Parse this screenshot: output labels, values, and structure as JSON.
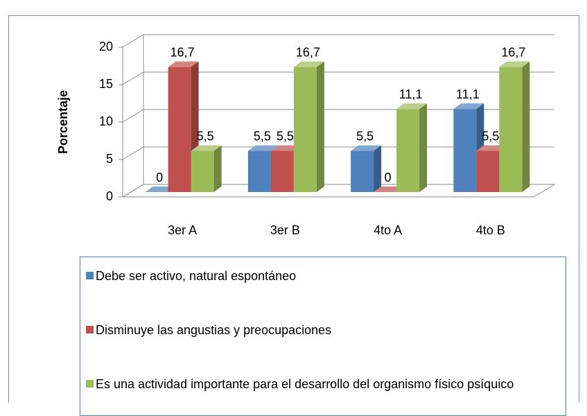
{
  "chart_data": {
    "type": "bar3d",
    "y_label": "Porcentaje",
    "categories": [
      "3er A",
      "3er B",
      "4to A",
      "4to B"
    ],
    "series": [
      {
        "name": "Debe ser activo, natural espontáneo",
        "color": "#4f81bd",
        "values": [
          0,
          5.5,
          5.5,
          11.1
        ],
        "value_labels": [
          "0",
          "5,5",
          "5,5",
          "11,1"
        ]
      },
      {
        "name": "Disminuye las angustias y preocupaciones",
        "color": "#c0504d",
        "values": [
          16.7,
          5.5,
          0,
          5.5
        ],
        "value_labels": [
          "16,7",
          "5,5",
          "0",
          "5,5"
        ]
      },
      {
        "name": "Es una actividad importante para el desarrollo del organismo físico psíquico",
        "color": "#9bbb59",
        "values": [
          5.5,
          16.7,
          11.1,
          16.7
        ],
        "value_labels": [
          "5,5",
          "16,7",
          "11,1",
          "16,7"
        ]
      }
    ],
    "ylim": [
      0,
      20
    ],
    "yticks": [
      0,
      5,
      10,
      15,
      20
    ],
    "grid": true,
    "legend": "bottom"
  }
}
